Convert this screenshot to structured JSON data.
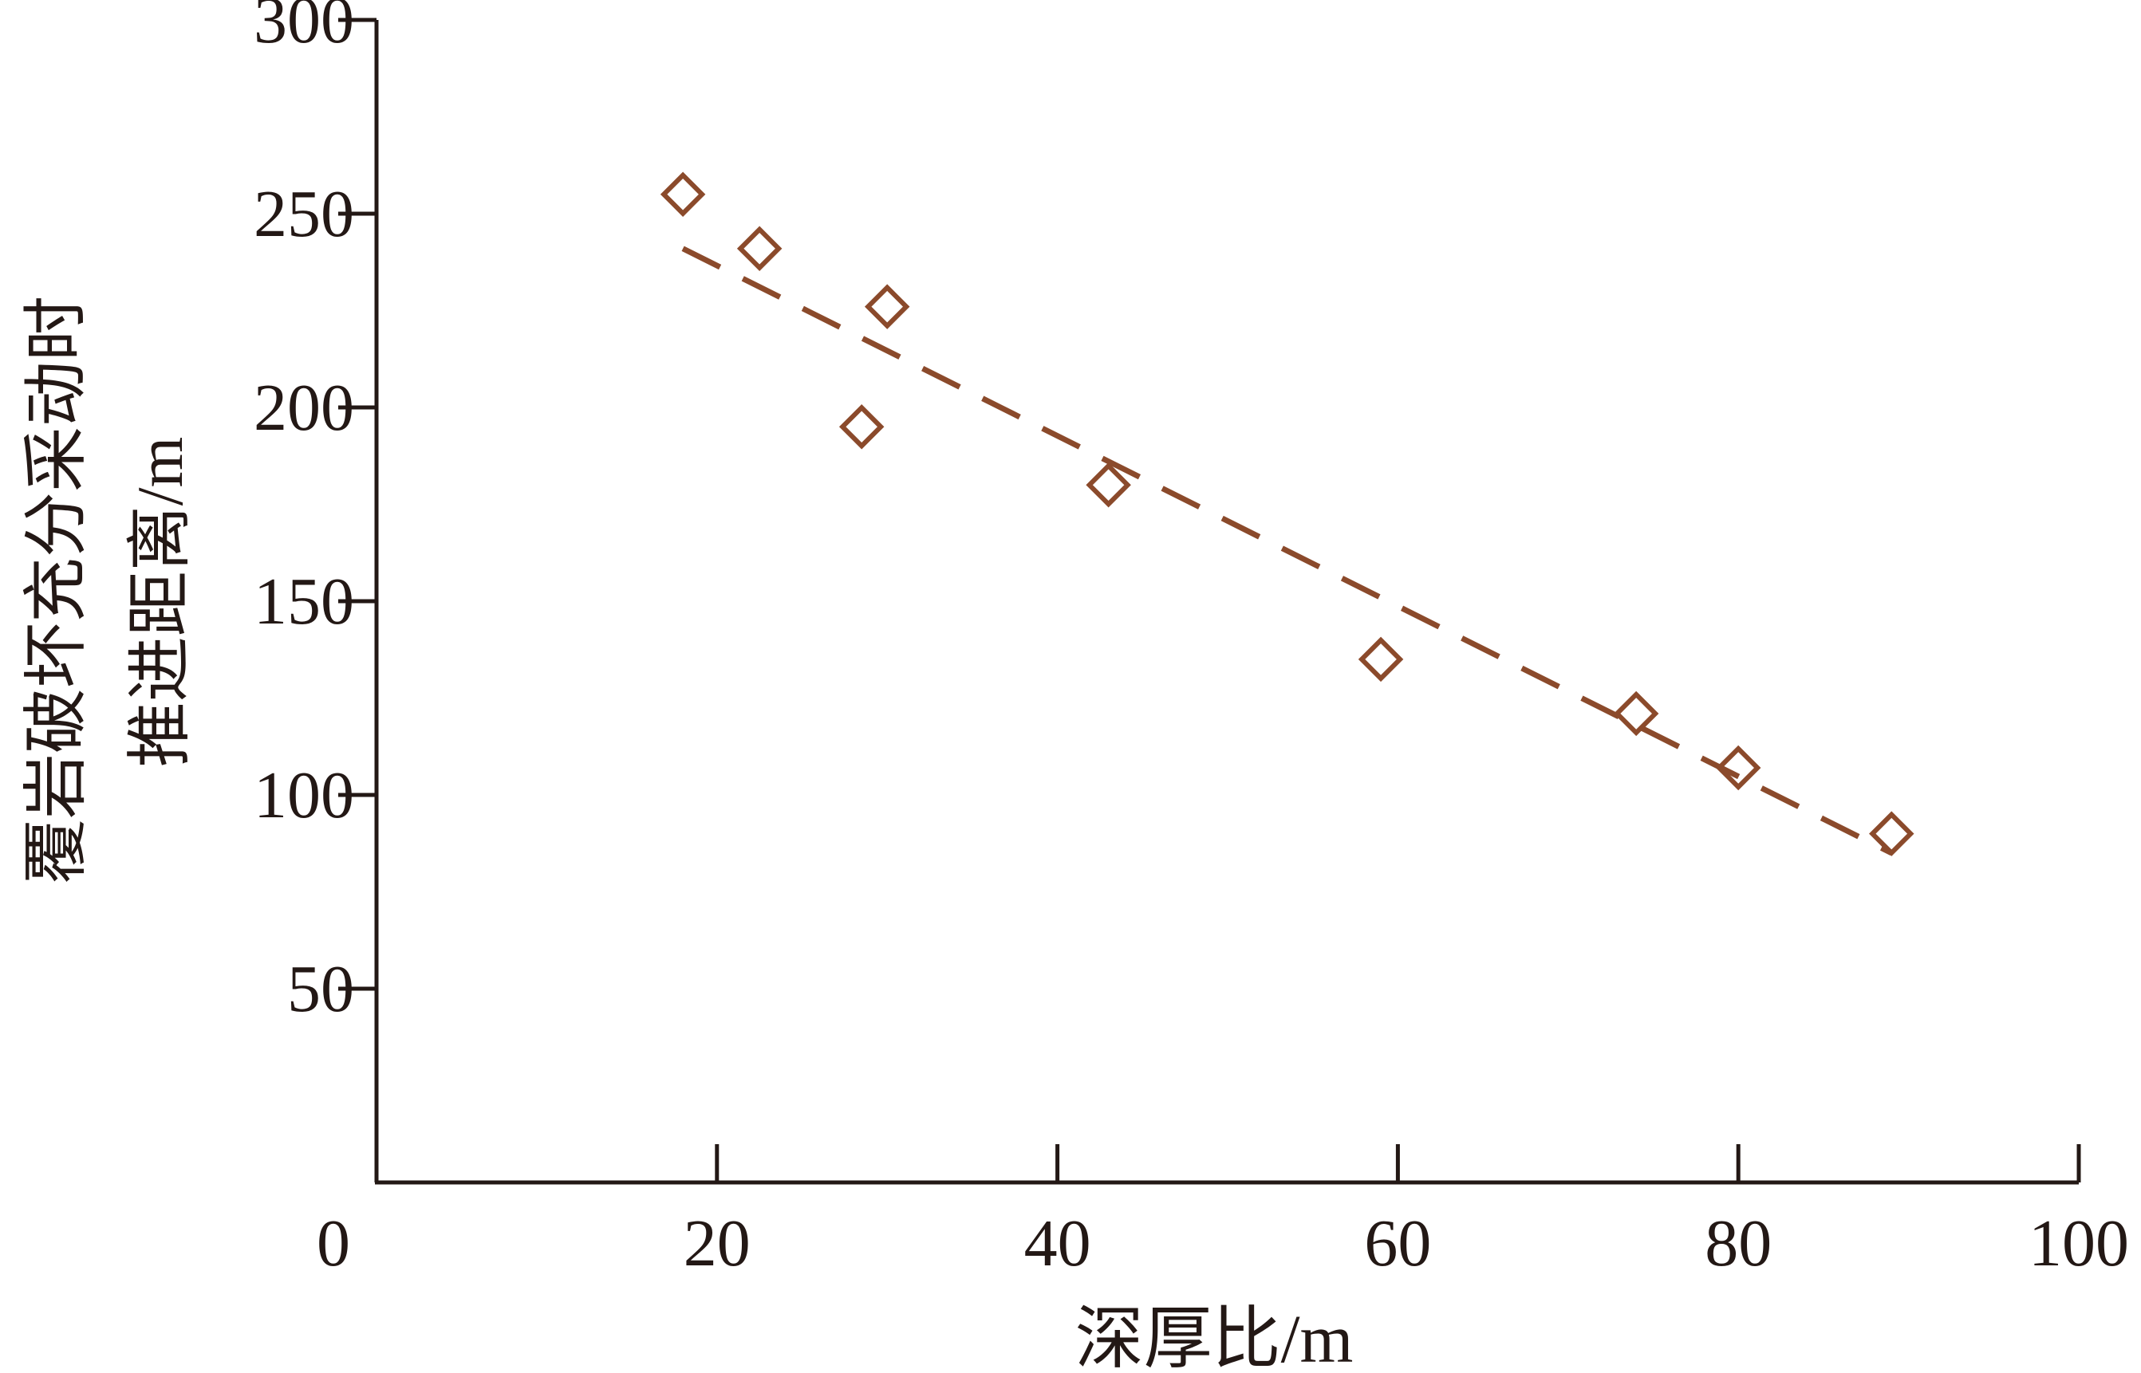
{
  "chart_data": {
    "type": "scatter",
    "xlabel": "深厚比/m",
    "ylabel_lines": [
      "覆岩破坏充分采动时",
      "推进距离/m"
    ],
    "xlim": [
      0,
      100
    ],
    "ylim": [
      0,
      300
    ],
    "x_ticks": [
      0,
      20,
      40,
      60,
      80,
      100
    ],
    "y_ticks": [
      50,
      100,
      150,
      200,
      250,
      300
    ],
    "x_tick_labels": [
      "0",
      "20",
      "40",
      "60",
      "80",
      "100"
    ],
    "y_tick_labels": [
      "50",
      "100",
      "150",
      "200",
      "250",
      "300"
    ],
    "grid": false,
    "colors": {
      "marker": "#8B4A2B",
      "trend": "#8B4A2B",
      "axis": "#231815"
    },
    "marker": "diamond-open",
    "series": [
      {
        "points": [
          {
            "x": 18,
            "y": 255
          },
          {
            "x": 22.5,
            "y": 241
          },
          {
            "x": 28.5,
            "y": 195
          },
          {
            "x": 30,
            "y": 226
          },
          {
            "x": 43,
            "y": 180
          },
          {
            "x": 59,
            "y": 135
          },
          {
            "x": 74,
            "y": 121
          },
          {
            "x": 80,
            "y": 107
          },
          {
            "x": 89,
            "y": 90
          }
        ]
      }
    ],
    "trendline": {
      "style": "dashed",
      "from": {
        "x": 18,
        "y": 241
      },
      "to": {
        "x": 89,
        "y": 85
      }
    }
  }
}
